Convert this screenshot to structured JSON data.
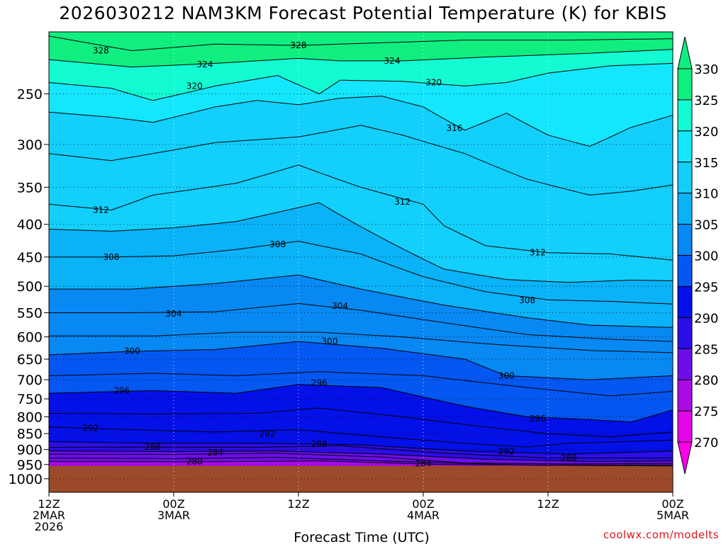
{
  "title": "2026030212 NAM3KM Forecast Potential Temperature (K) for KBIS",
  "credit": "coolwx.com/modelts",
  "chart_data": {
    "type": "heatmap",
    "title": "2026030212 NAM3KM Forecast Potential Temperature (K) for KBIS",
    "xlabel": "Forecast Time (UTC)",
    "ylabel": "",
    "x_range_hours": [
      0,
      60
    ],
    "x_ticks": [
      {
        "hour": 0,
        "lines": [
          "12Z",
          "2MAR",
          "2026"
        ]
      },
      {
        "hour": 12,
        "lines": [
          "00Z",
          "3MAR"
        ]
      },
      {
        "hour": 24,
        "lines": [
          "12Z"
        ]
      },
      {
        "hour": 36,
        "lines": [
          "00Z",
          "4MAR"
        ]
      },
      {
        "hour": 48,
        "lines": [
          "12Z"
        ]
      },
      {
        "hour": 60,
        "lines": [
          "00Z",
          "5MAR"
        ]
      }
    ],
    "y_ticks": [
      250,
      300,
      350,
      400,
      450,
      500,
      550,
      600,
      650,
      700,
      750,
      800,
      850,
      900,
      950,
      1000
    ],
    "y_range": [
      200,
      1050
    ],
    "y_log": true,
    "y_inverted": true,
    "grid": true,
    "colorbar": {
      "ticks": [
        330,
        325,
        320,
        315,
        310,
        305,
        300,
        295,
        290,
        285,
        280,
        275,
        270
      ],
      "colors": [
        "#10ee80",
        "#13fbd3",
        "#14e6fd",
        "#12cffb",
        "#0ab2f7",
        "#0788f2",
        "#0557f1",
        "#0410e8",
        "#2b0ee8",
        "#6d0ee9",
        "#ad0ae8",
        "#e406e8",
        "#ff00e9"
      ]
    },
    "surface_pressure": 955,
    "ground_color": "#9c4a2a",
    "contour_labels": [
      {
        "text": "328",
        "hour": 5,
        "p": 214
      },
      {
        "text": "328",
        "hour": 24,
        "p": 210
      },
      {
        "text": "324",
        "hour": 15,
        "p": 225
      },
      {
        "text": "324",
        "hour": 33,
        "p": 222
      },
      {
        "text": "320",
        "hour": 14,
        "p": 243
      },
      {
        "text": "320",
        "hour": 37,
        "p": 240
      },
      {
        "text": "316",
        "hour": 39,
        "p": 283
      },
      {
        "text": "312",
        "hour": 5,
        "p": 380
      },
      {
        "text": "312",
        "hour": 34,
        "p": 369
      },
      {
        "text": "312",
        "hour": 47,
        "p": 443
      },
      {
        "text": "308",
        "hour": 6,
        "p": 450
      },
      {
        "text": "308",
        "hour": 22,
        "p": 430
      },
      {
        "text": "308",
        "hour": 46,
        "p": 526
      },
      {
        "text": "304",
        "hour": 12,
        "p": 552
      },
      {
        "text": "304",
        "hour": 28,
        "p": 537
      },
      {
        "text": "300",
        "hour": 8,
        "p": 631
      },
      {
        "text": "300",
        "hour": 27,
        "p": 610
      },
      {
        "text": "300",
        "hour": 44,
        "p": 690
      },
      {
        "text": "296",
        "hour": 7,
        "p": 728
      },
      {
        "text": "296",
        "hour": 26,
        "p": 708
      },
      {
        "text": "296",
        "hour": 47,
        "p": 805
      },
      {
        "text": "292",
        "hour": 4,
        "p": 833
      },
      {
        "text": "292",
        "hour": 21,
        "p": 851
      },
      {
        "text": "292",
        "hour": 44,
        "p": 907
      },
      {
        "text": "288",
        "hour": 10,
        "p": 892
      },
      {
        "text": "288",
        "hour": 26,
        "p": 883
      },
      {
        "text": "288",
        "hour": 50,
        "p": 928
      },
      {
        "text": "284",
        "hour": 16,
        "p": 910
      },
      {
        "text": "284",
        "hour": 36,
        "p": 947
      },
      {
        "text": "280",
        "hour": 14,
        "p": 940
      }
    ],
    "contours": [
      {
        "theta": 328,
        "points": [
          [
            0,
            203
          ],
          [
            8,
            214
          ],
          [
            16,
            209
          ],
          [
            24,
            210
          ],
          [
            32,
            208
          ],
          [
            40,
            206
          ],
          [
            50,
            206
          ],
          [
            60,
            205
          ]
        ]
      },
      {
        "theta": 324,
        "points": [
          [
            0,
            221
          ],
          [
            8,
            227
          ],
          [
            16,
            224
          ],
          [
            24,
            220
          ],
          [
            28,
            222
          ],
          [
            34,
            222
          ],
          [
            42,
            219
          ],
          [
            52,
            216
          ],
          [
            60,
            213
          ]
        ]
      },
      {
        "theta": 320,
        "points": [
          [
            0,
            240
          ],
          [
            6,
            245
          ],
          [
            10,
            256
          ],
          [
            16,
            243
          ],
          [
            22,
            234
          ],
          [
            26,
            250
          ],
          [
            28,
            238
          ],
          [
            34,
            239
          ],
          [
            40,
            243
          ],
          [
            44,
            240
          ],
          [
            48,
            232
          ],
          [
            54,
            226
          ],
          [
            60,
            224
          ]
        ]
      },
      {
        "theta": 316,
        "points": [
          [
            0,
            267
          ],
          [
            6,
            272
          ],
          [
            10,
            277
          ],
          [
            16,
            262
          ],
          [
            20,
            256
          ],
          [
            24,
            260
          ],
          [
            28,
            254
          ],
          [
            32,
            252
          ],
          [
            36,
            262
          ],
          [
            40,
            285
          ],
          [
            44,
            268
          ],
          [
            48,
            290
          ],
          [
            52,
            302
          ],
          [
            56,
            282
          ],
          [
            60,
            270
          ]
        ]
      },
      {
        "theta": 314,
        "points": [
          [
            0,
            310
          ],
          [
            6,
            318
          ],
          [
            10,
            310
          ],
          [
            16,
            298
          ],
          [
            24,
            292
          ],
          [
            30,
            280
          ],
          [
            34,
            290
          ],
          [
            40,
            310
          ],
          [
            46,
            340
          ],
          [
            52,
            360
          ],
          [
            56,
            355
          ],
          [
            60,
            347
          ]
        ]
      },
      {
        "theta": 312,
        "points": [
          [
            0,
            372
          ],
          [
            6,
            380
          ],
          [
            10,
            360
          ],
          [
            18,
            345
          ],
          [
            24,
            323
          ],
          [
            30,
            350
          ],
          [
            36,
            372
          ],
          [
            38,
            402
          ],
          [
            42,
            432
          ],
          [
            48,
            443
          ],
          [
            54,
            445
          ],
          [
            60,
            455
          ]
        ]
      },
      {
        "theta": 310,
        "points": [
          [
            0,
            407
          ],
          [
            6,
            410
          ],
          [
            12,
            405
          ],
          [
            18,
            396
          ],
          [
            26,
            370
          ],
          [
            32,
            420
          ],
          [
            38,
            470
          ],
          [
            44,
            488
          ],
          [
            50,
            493
          ],
          [
            56,
            489
          ],
          [
            60,
            490
          ]
        ]
      },
      {
        "theta": 308,
        "points": [
          [
            0,
            450
          ],
          [
            6,
            450
          ],
          [
            12,
            448
          ],
          [
            18,
            438
          ],
          [
            24,
            425
          ],
          [
            30,
            445
          ],
          [
            36,
            483
          ],
          [
            42,
            510
          ],
          [
            48,
            525
          ],
          [
            54,
            528
          ],
          [
            60,
            533
          ]
        ]
      },
      {
        "theta": 306,
        "points": [
          [
            0,
            505
          ],
          [
            8,
            505
          ],
          [
            16,
            495
          ],
          [
            24,
            480
          ],
          [
            30,
            505
          ],
          [
            38,
            535
          ],
          [
            46,
            560
          ],
          [
            52,
            575
          ],
          [
            60,
            580
          ]
        ]
      },
      {
        "theta": 304,
        "points": [
          [
            0,
            550
          ],
          [
            8,
            550
          ],
          [
            16,
            548
          ],
          [
            24,
            532
          ],
          [
            30,
            545
          ],
          [
            38,
            570
          ],
          [
            46,
            595
          ],
          [
            54,
            605
          ],
          [
            60,
            610
          ]
        ]
      },
      {
        "theta": 302,
        "points": [
          [
            0,
            598
          ],
          [
            10,
            598
          ],
          [
            18,
            590
          ],
          [
            26,
            590
          ],
          [
            34,
            600
          ],
          [
            42,
            615
          ],
          [
            52,
            630
          ],
          [
            60,
            635
          ]
        ]
      },
      {
        "theta": 300,
        "points": [
          [
            0,
            640
          ],
          [
            8,
            632
          ],
          [
            16,
            628
          ],
          [
            24,
            610
          ],
          [
            32,
            625
          ],
          [
            40,
            650
          ],
          [
            44,
            690
          ],
          [
            52,
            700
          ],
          [
            60,
            690
          ]
        ]
      },
      {
        "theta": 298,
        "points": [
          [
            0,
            690
          ],
          [
            10,
            684
          ],
          [
            18,
            690
          ],
          [
            26,
            680
          ],
          [
            36,
            690
          ],
          [
            46,
            720
          ],
          [
            54,
            742
          ],
          [
            60,
            730
          ]
        ]
      },
      {
        "theta": 296,
        "points": [
          [
            0,
            735
          ],
          [
            10,
            728
          ],
          [
            18,
            735
          ],
          [
            24,
            712
          ],
          [
            32,
            720
          ],
          [
            40,
            770
          ],
          [
            46,
            800
          ],
          [
            52,
            808
          ],
          [
            56,
            815
          ],
          [
            60,
            780
          ]
        ]
      },
      {
        "theta": 294,
        "points": [
          [
            0,
            790
          ],
          [
            10,
            792
          ],
          [
            20,
            790
          ],
          [
            26,
            775
          ],
          [
            34,
            800
          ],
          [
            42,
            830
          ],
          [
            48,
            850
          ],
          [
            54,
            860
          ],
          [
            60,
            845
          ]
        ]
      },
      {
        "theta": 292,
        "points": [
          [
            0,
            830
          ],
          [
            8,
            838
          ],
          [
            16,
            845
          ],
          [
            24,
            838
          ],
          [
            32,
            860
          ],
          [
            40,
            880
          ],
          [
            46,
            892
          ],
          [
            50,
            880
          ],
          [
            60,
            870
          ]
        ]
      },
      {
        "theta": 290,
        "points": [
          [
            0,
            875
          ],
          [
            10,
            880
          ],
          [
            20,
            880
          ],
          [
            30,
            885
          ],
          [
            40,
            905
          ],
          [
            50,
            915
          ],
          [
            60,
            905
          ]
        ]
      },
      {
        "theta": 288,
        "points": [
          [
            0,
            893
          ],
          [
            10,
            892
          ],
          [
            20,
            893
          ],
          [
            28,
            888
          ],
          [
            38,
            912
          ],
          [
            48,
            928
          ],
          [
            60,
            928
          ]
        ]
      },
      {
        "theta": 286,
        "points": [
          [
            0,
            905
          ],
          [
            12,
            907
          ],
          [
            22,
            905
          ],
          [
            32,
            915
          ],
          [
            42,
            932
          ],
          [
            52,
            940
          ],
          [
            60,
            938
          ]
        ]
      },
      {
        "theta": 284,
        "points": [
          [
            0,
            915
          ],
          [
            12,
            916
          ],
          [
            22,
            912
          ],
          [
            32,
            925
          ],
          [
            40,
            945
          ],
          [
            50,
            948
          ],
          [
            60,
            946
          ]
        ]
      },
      {
        "theta": 282,
        "points": [
          [
            0,
            928
          ],
          [
            12,
            930
          ],
          [
            22,
            926
          ],
          [
            34,
            940
          ],
          [
            46,
            952
          ],
          [
            60,
            952
          ]
        ]
      },
      {
        "theta": 280,
        "points": [
          [
            0,
            940
          ],
          [
            14,
            941
          ],
          [
            26,
            938
          ],
          [
            38,
            950
          ],
          [
            60,
            955
          ]
        ]
      }
    ]
  }
}
